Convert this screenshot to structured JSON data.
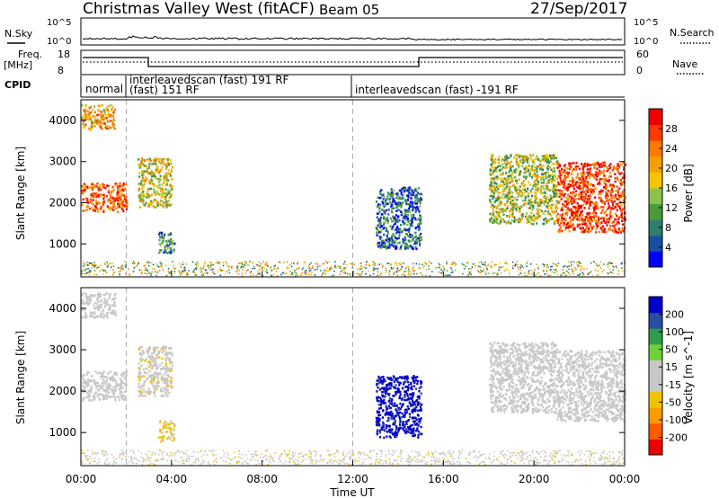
{
  "header": {
    "station": "Christmas Valley West (fitACF)",
    "beam": "Beam 05",
    "date": "27/Sep/2017"
  },
  "strips": {
    "nsky_label": "N.Sky",
    "nsearch_label": "N.Search",
    "nsky_ticks": [
      "10^5",
      "10^0"
    ],
    "nsearch_ticks": [
      "10^5",
      "10^0"
    ],
    "freq_label_1": "Freq.",
    "freq_label_2": "[MHz]",
    "freq_ticks": [
      "18",
      "8"
    ],
    "nave_label": "Nave",
    "nave_ticks": [
      "60",
      "0"
    ],
    "cpid_label": "CPID",
    "cpid_segments": [
      {
        "label": "normal",
        "start_hr": 0.0,
        "end_hr": 2.0
      },
      {
        "label": "interleavedscan (fast) 191 RF",
        "start_hr": 2.0,
        "end_hr": 12.0
      },
      {
        "label": "(fast) 151 RF",
        "start_hr": 2.0,
        "end_hr": 12.0
      },
      {
        "label": "interleavedscan (fast) -191 RF",
        "start_hr": 12.0,
        "end_hr": 24.0
      }
    ]
  },
  "colors": {
    "power_scale": [
      "#0000ff",
      "#1a4fa0",
      "#2e7d6e",
      "#4b9a3a",
      "#8bc34a",
      "#f6c400",
      "#f5a000",
      "#ff7a00",
      "#ff3a00",
      "#ee0000"
    ],
    "velocity_scale": [
      "#ee0000",
      "#ff5a00",
      "#ff9a00",
      "#f2c200",
      "#c8c8c8",
      "#c8c8c8",
      "#6fd03a",
      "#2e9e4a",
      "#2a4fa0",
      "#0000c8"
    ]
  },
  "chart_data": [
    {
      "type": "heatmap",
      "name": "power",
      "xlabel": "",
      "ylabel": "Slant Range [km]",
      "xlim": [
        0,
        24
      ],
      "ylim": [
        200,
        4500
      ],
      "yticks": [
        "1000",
        "2000",
        "3000",
        "4000"
      ],
      "colorbar_label": "Power [dB]",
      "colorbar_ticks": [
        "28",
        "24",
        "20",
        "16",
        "12",
        "8",
        "4"
      ],
      "colorbar_range": [
        0,
        30
      ],
      "regions": [
        {
          "x0": 0.0,
          "x1": 2.0,
          "y0": 1800,
          "y1": 2500,
          "value": 24
        },
        {
          "x0": 0.0,
          "x1": 1.5,
          "y0": 3800,
          "y1": 4400,
          "value": 20
        },
        {
          "x0": 2.5,
          "x1": 4.0,
          "y0": 1900,
          "y1": 3100,
          "value": 16
        },
        {
          "x0": 3.4,
          "x1": 4.1,
          "y0": 800,
          "y1": 1300,
          "value": 8
        },
        {
          "x0": 13.0,
          "x1": 15.0,
          "y0": 900,
          "y1": 2400,
          "value": 6
        },
        {
          "x0": 18.0,
          "x1": 21.0,
          "y0": 1500,
          "y1": 3200,
          "value": 14
        },
        {
          "x0": 21.0,
          "x1": 24.0,
          "y0": 1300,
          "y1": 3000,
          "value": 26
        }
      ]
    },
    {
      "type": "heatmap",
      "name": "velocity",
      "xlabel": "Time UT",
      "ylabel": "Slant Range [km]",
      "xlim": [
        0,
        24
      ],
      "ylim": [
        200,
        4500
      ],
      "xticks": [
        "00:00",
        "04:00",
        "08:00",
        "12:00",
        "16:00",
        "20:00",
        "00:00"
      ],
      "yticks": [
        "1000",
        "2000",
        "3000",
        "4000"
      ],
      "colorbar_label": "Velocity [m s^-1]",
      "colorbar_ticks": [
        "200",
        "100",
        "50",
        "15",
        "-15",
        "-50",
        "-100",
        "-200"
      ],
      "colorbar_range": [
        -250,
        250
      ],
      "regions": [
        {
          "x0": 0.0,
          "x1": 2.0,
          "y0": 1800,
          "y1": 2500,
          "value": 0
        },
        {
          "x0": 0.0,
          "x1": 1.5,
          "y0": 3800,
          "y1": 4400,
          "value": 0
        },
        {
          "x0": 2.5,
          "x1": 4.0,
          "y0": 1900,
          "y1": 3100,
          "value": -30
        },
        {
          "x0": 3.4,
          "x1": 4.1,
          "y0": 800,
          "y1": 1300,
          "value": -60
        },
        {
          "x0": 13.0,
          "x1": 15.0,
          "y0": 900,
          "y1": 2400,
          "value": 220
        },
        {
          "x0": 18.0,
          "x1": 21.0,
          "y0": 1500,
          "y1": 3200,
          "value": 0
        },
        {
          "x0": 21.0,
          "x1": 24.0,
          "y0": 1300,
          "y1": 3000,
          "value": 0
        }
      ]
    }
  ]
}
